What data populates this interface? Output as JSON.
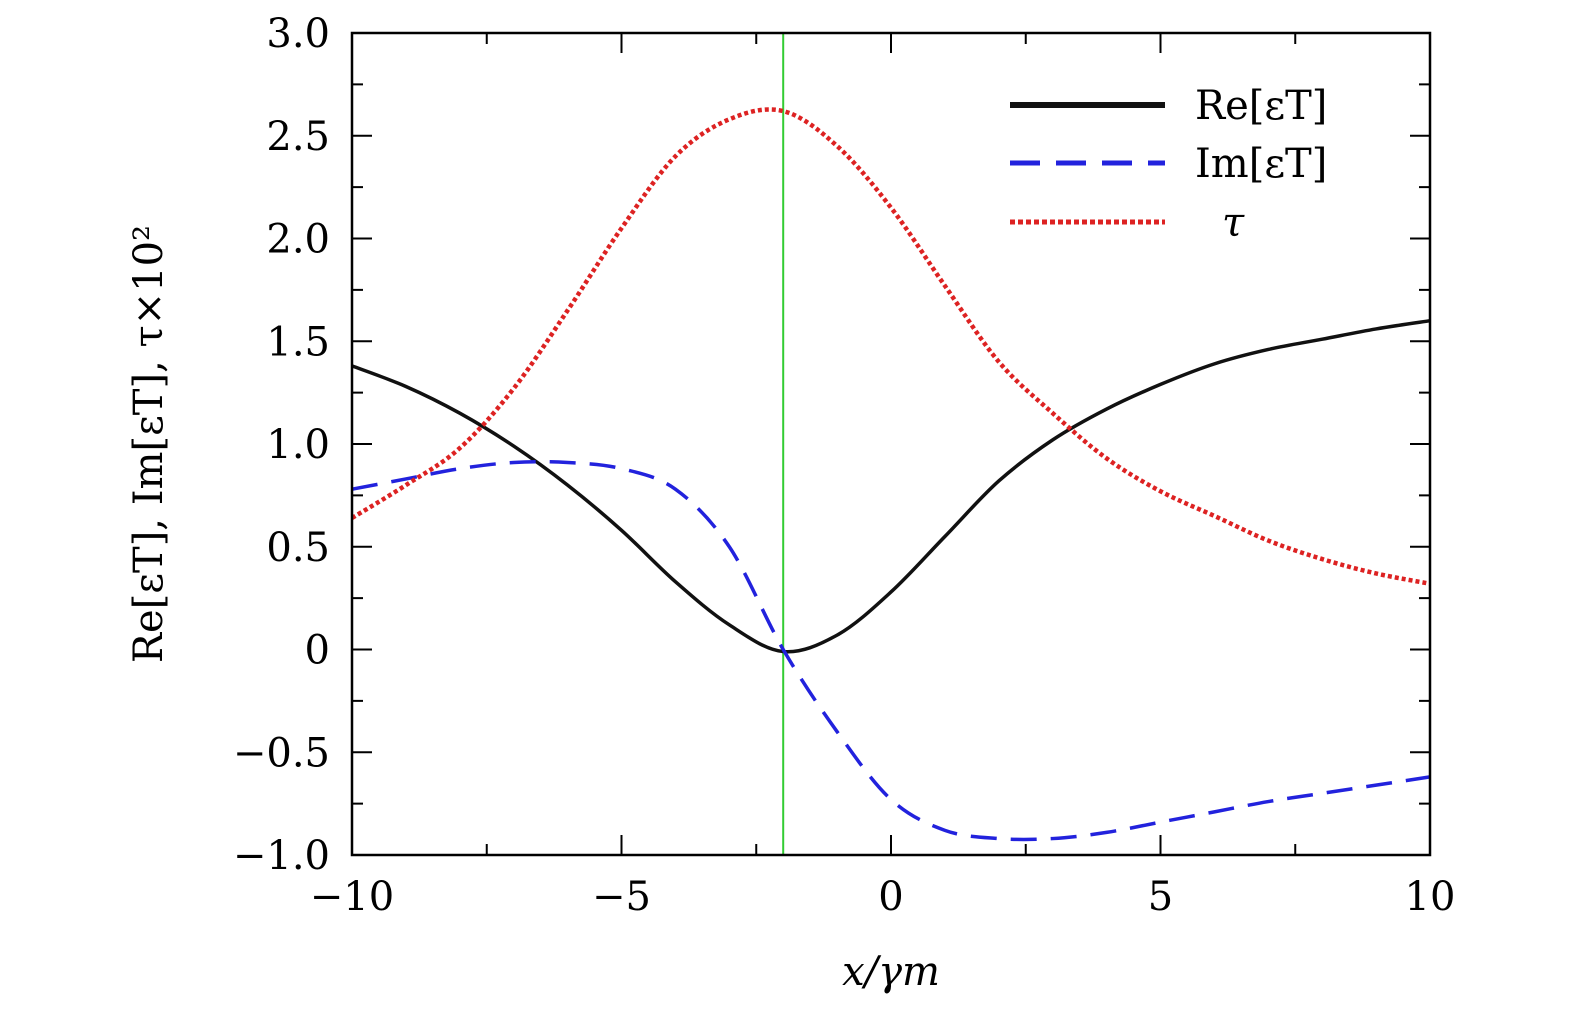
{
  "chart_data": {
    "type": "line",
    "title": "",
    "xlabel": "x/γm",
    "ylabel": "Re[εT], Im[εT], τ×10²",
    "xlim": [
      -10,
      10
    ],
    "ylim": [
      -1.0,
      3.0
    ],
    "x_ticks": [
      -10,
      -5,
      0,
      5,
      10
    ],
    "x_tick_labels": [
      "−10",
      "−5",
      "0",
      "5",
      "10"
    ],
    "y_ticks": [
      -1.0,
      -0.5,
      0,
      0.5,
      1.0,
      1.5,
      2.0,
      2.5,
      3.0
    ],
    "y_tick_labels": [
      "−1.0",
      "−0.5",
      "0",
      "0.5",
      "1.0",
      "1.5",
      "2.0",
      "2.5",
      "3.0"
    ],
    "grid": false,
    "legend_position": "top-right",
    "vertical_marker": {
      "x": -2,
      "color": "#33cc33"
    },
    "series": [
      {
        "name": "Re[εT]",
        "color": "#111111",
        "style": "solid",
        "x": [
          -10,
          -9,
          -8,
          -7,
          -6,
          -5,
          -4,
          -3,
          -2,
          -1,
          0,
          1,
          2,
          3,
          4,
          5,
          6,
          7,
          8,
          9,
          10
        ],
        "y": [
          1.38,
          1.28,
          1.15,
          0.99,
          0.8,
          0.58,
          0.33,
          0.12,
          -0.01,
          0.07,
          0.28,
          0.55,
          0.82,
          1.02,
          1.17,
          1.29,
          1.39,
          1.46,
          1.51,
          1.56,
          1.6
        ]
      },
      {
        "name": "Im[εT]",
        "color": "#2222dd",
        "style": "dashed",
        "x": [
          -10,
          -9,
          -8,
          -7,
          -6,
          -5,
          -4,
          -3,
          -2,
          -1,
          0,
          1,
          2,
          3,
          4,
          5,
          6,
          7,
          8,
          9,
          10
        ],
        "y": [
          0.78,
          0.83,
          0.88,
          0.91,
          0.91,
          0.88,
          0.78,
          0.5,
          0.0,
          -0.4,
          -0.73,
          -0.88,
          -0.92,
          -0.92,
          -0.89,
          -0.84,
          -0.79,
          -0.74,
          -0.7,
          -0.66,
          -0.62
        ]
      },
      {
        "name": "τ",
        "color": "#dd2222",
        "style": "dotted",
        "x": [
          -10,
          -9,
          -8,
          -7,
          -6,
          -5,
          -4,
          -3,
          -2,
          -1,
          0,
          1,
          2,
          3,
          4,
          5,
          6,
          7,
          8,
          9,
          10
        ],
        "y": [
          0.64,
          0.8,
          0.98,
          1.27,
          1.65,
          2.05,
          2.4,
          2.58,
          2.62,
          2.45,
          2.15,
          1.77,
          1.4,
          1.15,
          0.93,
          0.77,
          0.65,
          0.53,
          0.44,
          0.37,
          0.32
        ]
      }
    ]
  }
}
